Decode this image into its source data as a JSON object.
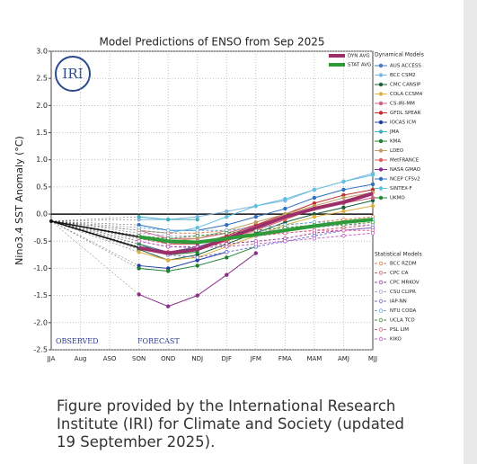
{
  "chart_data": {
    "type": "line",
    "title": "Model Predictions of ENSO from Sep 2025",
    "y_label": "Nino3.4 SST Anomaly (°C)",
    "logo": "IRI",
    "annotations": {
      "observed": "OBSERVED",
      "forecast": "FORECAST"
    },
    "legend": {
      "dynamical_title": "Dynamical Models",
      "statistical_title": "Statistical Models"
    },
    "grid": true,
    "categories": [
      "JJA",
      "Aug",
      "ASO",
      "SON",
      "OND",
      "NDJ",
      "DJF",
      "JFM",
      "FMA",
      "MAM",
      "AMJ",
      "MJJ"
    ],
    "observed": [
      -0.13,
      null,
      null,
      null,
      null,
      null,
      null,
      null,
      null,
      null,
      null,
      null
    ],
    "ylim": [
      -2.5,
      3.0
    ],
    "yticks": [
      {
        "value": 3,
        "label": "3.0"
      },
      2.5,
      {
        "value": 2,
        "label": "2.0"
      },
      1.5,
      {
        "value": 1,
        "label": "1.0"
      },
      0.5,
      {
        "value": 0,
        "label": "0.0"
      },
      -0.5,
      {
        "value": -1,
        "label": "-1.0"
      },
      -1.5,
      {
        "value": -2,
        "label": "-2.0"
      },
      -2.5
    ],
    "series": [
      {
        "name": "DYN AVG",
        "group": "average",
        "color": "#9c2e6a",
        "values": [
          null,
          null,
          null,
          -0.62,
          -0.72,
          -0.65,
          -0.45,
          -0.25,
          -0.05,
          0.1,
          0.22,
          0.38
        ]
      },
      {
        "name": "STAT AVG",
        "group": "average",
        "color": "#2e9a3a",
        "values": [
          null,
          null,
          null,
          -0.42,
          -0.5,
          -0.52,
          -0.45,
          -0.38,
          -0.3,
          -0.22,
          -0.15,
          -0.1
        ]
      },
      {
        "name": "AUS ACCESS",
        "group": "dynamical",
        "color": "#4a7bb7",
        "values": [
          null,
          null,
          null,
          -0.55,
          -0.7,
          -0.6,
          -0.45,
          null,
          null,
          null,
          null,
          null
        ]
      },
      {
        "name": "BCC CSM2",
        "group": "dynamical",
        "color": "#7fb5e0",
        "values": [
          null,
          null,
          null,
          -0.1,
          -0.1,
          -0.05,
          0.05,
          0.15,
          0.25,
          0.45,
          0.6,
          0.75
        ]
      },
      {
        "name": "CMC CANSIP",
        "group": "dynamical",
        "color": "#1b5e3a",
        "values": [
          null,
          null,
          null,
          -0.65,
          -0.85,
          -0.75,
          -0.55,
          -0.35,
          -0.15,
          0.0,
          0.12,
          0.25
        ]
      },
      {
        "name": "COLA CCSM4",
        "group": "dynamical",
        "color": "#e0b040",
        "values": [
          null,
          null,
          null,
          -0.7,
          -0.85,
          -0.8,
          -0.6,
          -0.4,
          -0.2,
          -0.05,
          0.05,
          0.15
        ]
      },
      {
        "name": "CS-IRI-MM",
        "group": "dynamical",
        "color": "#d06080",
        "values": [
          null,
          null,
          null,
          -0.3,
          -0.45,
          -0.45,
          -0.35,
          -0.2,
          -0.05,
          0.1,
          0.2,
          0.3
        ]
      },
      {
        "name": "GFDL SPEAR",
        "group": "dynamical",
        "color": "#c03030",
        "values": [
          null,
          null,
          null,
          -0.4,
          -0.55,
          -0.55,
          -0.4,
          -0.2,
          0.0,
          0.2,
          0.35,
          0.45
        ]
      },
      {
        "name": "IOCAS ICM",
        "group": "dynamical",
        "color": "#2040a0",
        "values": [
          null,
          null,
          null,
          -0.95,
          -1.0,
          -0.85,
          -0.7,
          null,
          null,
          null,
          null,
          null
        ]
      },
      {
        "name": "JMA",
        "group": "dynamical",
        "color": "#40b0c0",
        "values": [
          null,
          null,
          null,
          -0.05,
          -0.1,
          -0.1,
          null,
          null,
          null,
          null,
          null,
          null
        ]
      },
      {
        "name": "KMA",
        "group": "dynamical",
        "color": "#208030",
        "values": [
          null,
          null,
          null,
          -1.0,
          -1.05,
          -0.95,
          -0.8,
          -0.6,
          null,
          null,
          null,
          null
        ]
      },
      {
        "name": "LDEO",
        "group": "dynamical",
        "color": "#c0a060",
        "values": [
          null,
          null,
          null,
          -0.45,
          -0.5,
          -0.45,
          -0.3,
          -0.15,
          0.0,
          0.15,
          0.3,
          0.4
        ]
      },
      {
        "name": "MetFRANCE",
        "group": "dynamical",
        "color": "#e06060",
        "values": [
          null,
          null,
          null,
          -0.6,
          -0.7,
          -0.65,
          -0.5,
          -0.3,
          -0.1,
          0.1,
          null,
          null
        ]
      },
      {
        "name": "NASA GMAO",
        "group": "dynamical",
        "color": "#8b2e8b",
        "values": [
          null,
          null,
          null,
          -1.48,
          -1.7,
          -1.5,
          -1.12,
          -0.72,
          null,
          null,
          null,
          null
        ]
      },
      {
        "name": "NCEP CFSv2",
        "group": "dynamical",
        "color": "#3070c0",
        "values": [
          null,
          null,
          null,
          -0.2,
          -0.3,
          -0.3,
          -0.2,
          -0.05,
          0.1,
          0.3,
          0.45,
          0.55
        ]
      },
      {
        "name": "SINTEX-F",
        "group": "dynamical",
        "color": "#60c0e0",
        "values": [
          null,
          null,
          null,
          -0.3,
          -0.35,
          -0.25,
          -0.05,
          0.15,
          0.28,
          0.45,
          0.6,
          0.72
        ]
      },
      {
        "name": "UKMO",
        "group": "dynamical",
        "color": "#208a30",
        "values": [
          null,
          null,
          null,
          -0.55,
          -0.75,
          -0.7,
          null,
          null,
          null,
          null,
          null,
          null
        ]
      },
      {
        "name": "BCC RZDM",
        "group": "statistical",
        "color": "#e08040",
        "values": [
          null,
          null,
          null,
          -0.3,
          -0.35,
          -0.35,
          -0.3,
          -0.25,
          -0.2,
          -0.15,
          -0.1,
          -0.05
        ]
      },
      {
        "name": "CPC CA",
        "group": "statistical",
        "color": "#d06060",
        "values": [
          null,
          null,
          null,
          -0.4,
          -0.5,
          -0.5,
          -0.45,
          -0.4,
          -0.35,
          -0.3,
          -0.25,
          -0.2
        ]
      },
      {
        "name": "CPC MRKOV",
        "group": "statistical",
        "color": "#a040a0",
        "values": [
          null,
          null,
          null,
          -0.5,
          -0.6,
          -0.6,
          -0.55,
          -0.5,
          -0.45,
          -0.35,
          -0.3,
          -0.25
        ]
      },
      {
        "name": "CSU CLIPR",
        "group": "statistical",
        "color": "#b0a0d0",
        "values": [
          null,
          null,
          null,
          -0.35,
          -0.4,
          -0.4,
          -0.35,
          -0.3,
          -0.3,
          -0.25,
          -0.2,
          -0.2
        ]
      },
      {
        "name": "IAP-NN",
        "group": "statistical",
        "color": "#7070d0",
        "values": [
          null,
          null,
          null,
          -0.6,
          -0.75,
          -0.8,
          -0.7,
          -0.6,
          -0.5,
          -0.4,
          -0.3,
          -0.25
        ]
      },
      {
        "name": "NTU CODA",
        "group": "statistical",
        "color": "#60b0e0",
        "values": [
          null,
          null,
          null,
          -0.25,
          -0.3,
          -0.3,
          -0.3,
          -0.25,
          -0.2,
          -0.15,
          -0.15,
          -0.1
        ]
      },
      {
        "name": "UCLA TCD",
        "group": "statistical",
        "color": "#409040",
        "values": [
          null,
          null,
          null,
          -0.4,
          -0.45,
          -0.4,
          -0.35,
          -0.3,
          -0.25,
          -0.2,
          -0.2,
          -0.15
        ]
      },
      {
        "name": "PSL LIM",
        "group": "statistical",
        "color": "#e06090",
        "values": [
          null,
          null,
          null,
          -0.45,
          -0.55,
          -0.5,
          -0.45,
          -0.4,
          -0.35,
          -0.3,
          -0.3,
          -0.3
        ]
      },
      {
        "name": "KIKO",
        "group": "statistical",
        "color": "#c060c0",
        "values": [
          null,
          null,
          null,
          -0.5,
          -0.6,
          -0.62,
          -0.6,
          -0.55,
          -0.5,
          -0.45,
          -0.4,
          -0.35
        ]
      }
    ]
  },
  "caption": [
    "Figure provided by the International Research",
    "Institute (IRI) for Climate and Society (updated",
    "19 September 2025)."
  ]
}
